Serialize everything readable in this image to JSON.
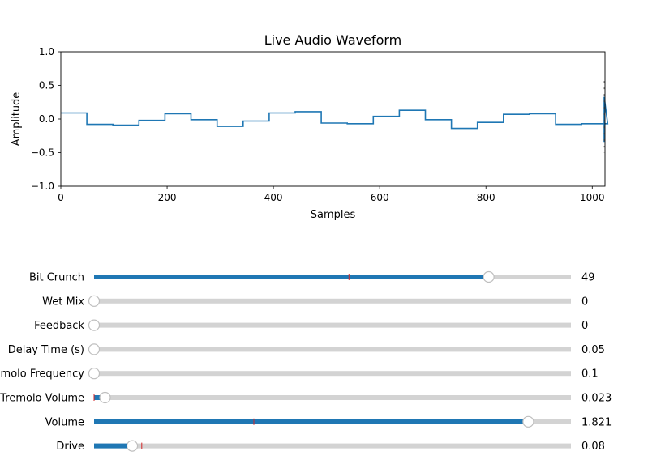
{
  "colors": {
    "line": "#1f77b4",
    "track": "#d3d3d3",
    "valinit_marker": "#d62728",
    "knob_fill": "#ffffff",
    "knob_stroke": "#bfbfbf"
  },
  "chart_data": {
    "type": "line",
    "title": "Live Audio Waveform",
    "xlabel": "Samples",
    "ylabel": "Amplitude",
    "xlim": [
      0,
      1024
    ],
    "ylim": [
      -1.0,
      1.0
    ],
    "x_ticks": [
      "0",
      "200",
      "400",
      "600",
      "800",
      "1000"
    ],
    "x_tick_values": [
      0,
      200,
      400,
      600,
      800,
      1000
    ],
    "y_ticks": [
      "1.0",
      "0.5",
      "0.0",
      "−0.5",
      "−1.0"
    ],
    "y_tick_values": [
      1.0,
      0.5,
      0.0,
      -0.5,
      -1.0
    ],
    "grid": false,
    "step_width": 49,
    "step_values": [
      0.09,
      -0.08,
      -0.09,
      -0.02,
      0.08,
      -0.01,
      -0.11,
      -0.03,
      0.09,
      0.11,
      -0.06,
      -0.07,
      0.04,
      0.13,
      -0.01,
      -0.14,
      -0.05,
      0.07,
      0.08,
      -0.08,
      -0.07
    ],
    "tail_values": [
      0.33,
      -0.34
    ]
  },
  "sliders": [
    {
      "label": "Bit Crunch",
      "value_text": "49",
      "value": 49,
      "min": 1,
      "max": 59,
      "valinit": 32
    },
    {
      "label": "Wet Mix",
      "value_text": "0",
      "value": 0,
      "min": 0,
      "max": 1,
      "valinit": 0
    },
    {
      "label": "Feedback",
      "value_text": "0",
      "value": 0,
      "min": 0,
      "max": 1,
      "valinit": 0
    },
    {
      "label": "Delay Time (s)",
      "value_text": "0.05",
      "value": 0.05,
      "min": 0.05,
      "max": 2,
      "valinit": 0.05
    },
    {
      "label": "Tremolo Frequency",
      "value_text": "0.1",
      "value": 0.1,
      "min": 0.1,
      "max": 20,
      "valinit": 0.1
    },
    {
      "label": "Tremolo Volume",
      "value_text": "0.023",
      "value": 0.023,
      "min": 0,
      "max": 1,
      "valinit": 0
    },
    {
      "label": "Volume",
      "value_text": "1.821",
      "value": 1.821,
      "min": 0,
      "max": 2,
      "valinit": 0.67
    },
    {
      "label": "Drive",
      "value_text": "0.08",
      "value": 0.08,
      "min": 0,
      "max": 1,
      "valinit": 0.1
    }
  ]
}
